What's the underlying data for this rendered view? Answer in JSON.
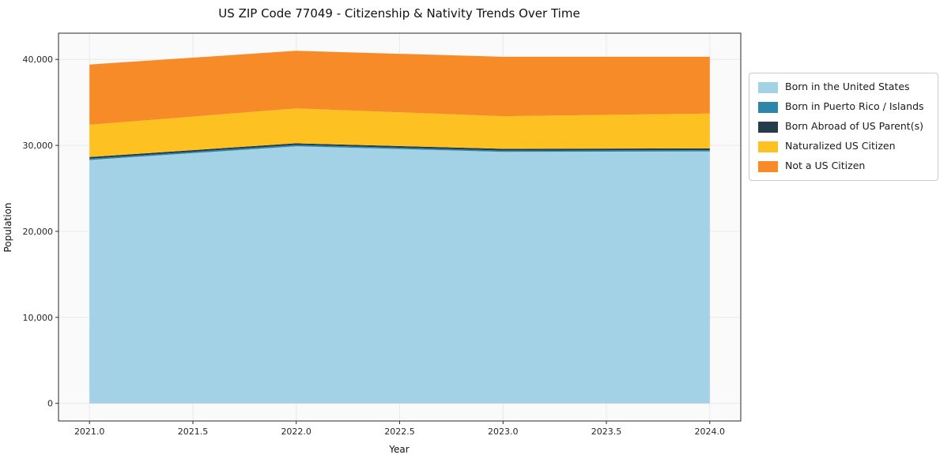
{
  "chart_data": {
    "type": "area",
    "stacked": true,
    "title": "US ZIP Code 77049 - Citizenship & Nativity Trends Over Time",
    "xlabel": "Year",
    "ylabel": "Population",
    "x": [
      2021,
      2022,
      2023,
      2024
    ],
    "series": [
      {
        "id": "born-us",
        "name": "Born in the United States",
        "color": "#a3d1e6",
        "values": [
          28300,
          29900,
          29250,
          29300
        ]
      },
      {
        "id": "born-pr",
        "name": "Born in Puerto Rico / Islands",
        "color": "#2e86ab",
        "values": [
          150,
          150,
          150,
          150
        ]
      },
      {
        "id": "born-abroad",
        "name": "Born Abroad of US Parent(s)",
        "color": "#253c4b",
        "values": [
          200,
          200,
          200,
          200
        ]
      },
      {
        "id": "naturalized",
        "name": "Naturalized US Citizen",
        "color": "#fdc221",
        "values": [
          3750,
          4050,
          3800,
          4050
        ]
      },
      {
        "id": "not-citizen",
        "name": "Not a US Citizen",
        "color": "#f78b28",
        "values": [
          7000,
          6700,
          6900,
          6600
        ]
      }
    ],
    "xlim": [
      2020.85,
      2024.15
    ],
    "ylim": [
      -2050,
      43050
    ],
    "xticks": {
      "values": [
        2021,
        2021.5,
        2022,
        2022.5,
        2023,
        2023.5,
        2024
      ],
      "labels": [
        "2021.0",
        "2021.5",
        "2022.0",
        "2022.5",
        "2023.0",
        "2023.5",
        "2024.0"
      ]
    },
    "yticks": {
      "values": [
        0,
        10000,
        20000,
        30000,
        40000
      ],
      "labels": [
        "0",
        "10,000",
        "20,000",
        "30,000",
        "40,000"
      ]
    },
    "grid": true,
    "legend_position": "right",
    "colors": {
      "plot_background": "#fafafa",
      "gridline": "#e9e9e9",
      "spine": "#2b2b2b",
      "tick_text": "#262626"
    }
  }
}
